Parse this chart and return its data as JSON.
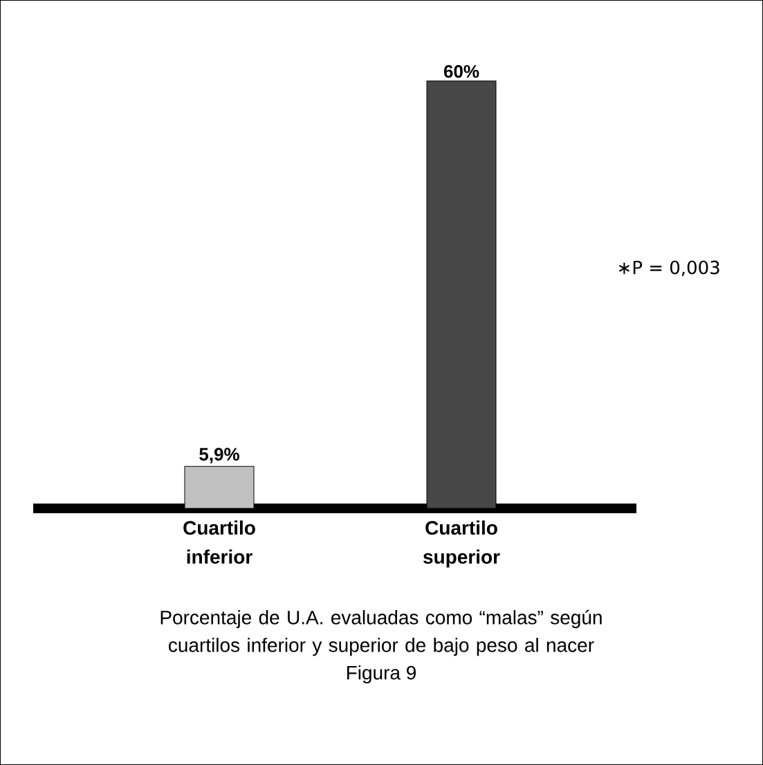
{
  "chart_data": {
    "type": "bar",
    "title": "Porcentaje de U.A. evaluadas como “malas” según cuartilos inferior y superior de bajo peso al nacer",
    "categories": [
      "Cuartilo inferior",
      "Cuartilo superior"
    ],
    "values": [
      5.9,
      60
    ],
    "colors": [
      "#c0c0c0",
      "#474747"
    ],
    "value_labels": [
      "5,9%",
      "60%"
    ],
    "annotations": [
      "∗P = 0,003",
      "Figura 9"
    ]
  }
}
